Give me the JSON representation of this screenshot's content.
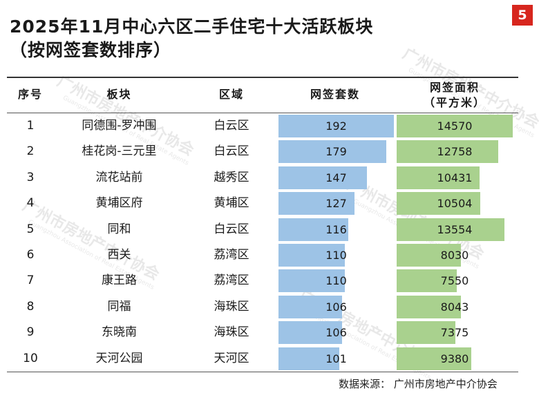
{
  "page": {
    "title_line1": "2025年11月中心六区二手住宅十大活跃板块",
    "title_line2": "（按网签套数排序）",
    "page_number": "5",
    "source": "数据来源：  广州市房地产中介协会",
    "watermark_cn": "广州市房地产中介协会",
    "watermark_en": "Guangzhou Association of Real Estate Agents"
  },
  "table": {
    "headers": {
      "rank": "序号",
      "block": "板块",
      "district": "区域",
      "count": "网签套数",
      "area_line1": "网签面积",
      "area_line2": "（平方米）"
    },
    "rows": [
      {
        "rank": "1",
        "block": "同德围-罗冲围",
        "district": "白云区"
      },
      {
        "rank": "2",
        "block": "桂花岗-三元里",
        "district": "白云区"
      },
      {
        "rank": "3",
        "block": "流花站前",
        "district": "越秀区"
      },
      {
        "rank": "4",
        "block": "黄埔区府",
        "district": "黄埔区"
      },
      {
        "rank": "5",
        "block": "同和",
        "district": "白云区"
      },
      {
        "rank": "6",
        "block": "西关",
        "district": "荔湾区"
      },
      {
        "rank": "7",
        "block": "康王路",
        "district": "荔湾区"
      },
      {
        "rank": "8",
        "block": "同福",
        "district": "海珠区"
      },
      {
        "rank": "9",
        "block": "东晓南",
        "district": "海珠区"
      },
      {
        "rank": "10",
        "block": "天河公园",
        "district": "天河区"
      }
    ]
  },
  "chart_data": {
    "type": "bar",
    "categories": [
      "同德围-罗冲围",
      "桂花岗-三元里",
      "流花站前",
      "黄埔区府",
      "同和",
      "西关",
      "康王路",
      "同福",
      "东晓南",
      "天河公园"
    ],
    "series": [
      {
        "name": "网签套数",
        "values": [
          192,
          179,
          147,
          127,
          116,
          110,
          110,
          106,
          106,
          101
        ],
        "color": "#9dc3e6",
        "max": 192
      },
      {
        "name": "网签面积（平方米）",
        "values": [
          14570,
          12758,
          10431,
          10504,
          13554,
          8030,
          7550,
          8043,
          7375,
          9380
        ],
        "color": "#a9d18e",
        "max": 14570
      }
    ]
  }
}
